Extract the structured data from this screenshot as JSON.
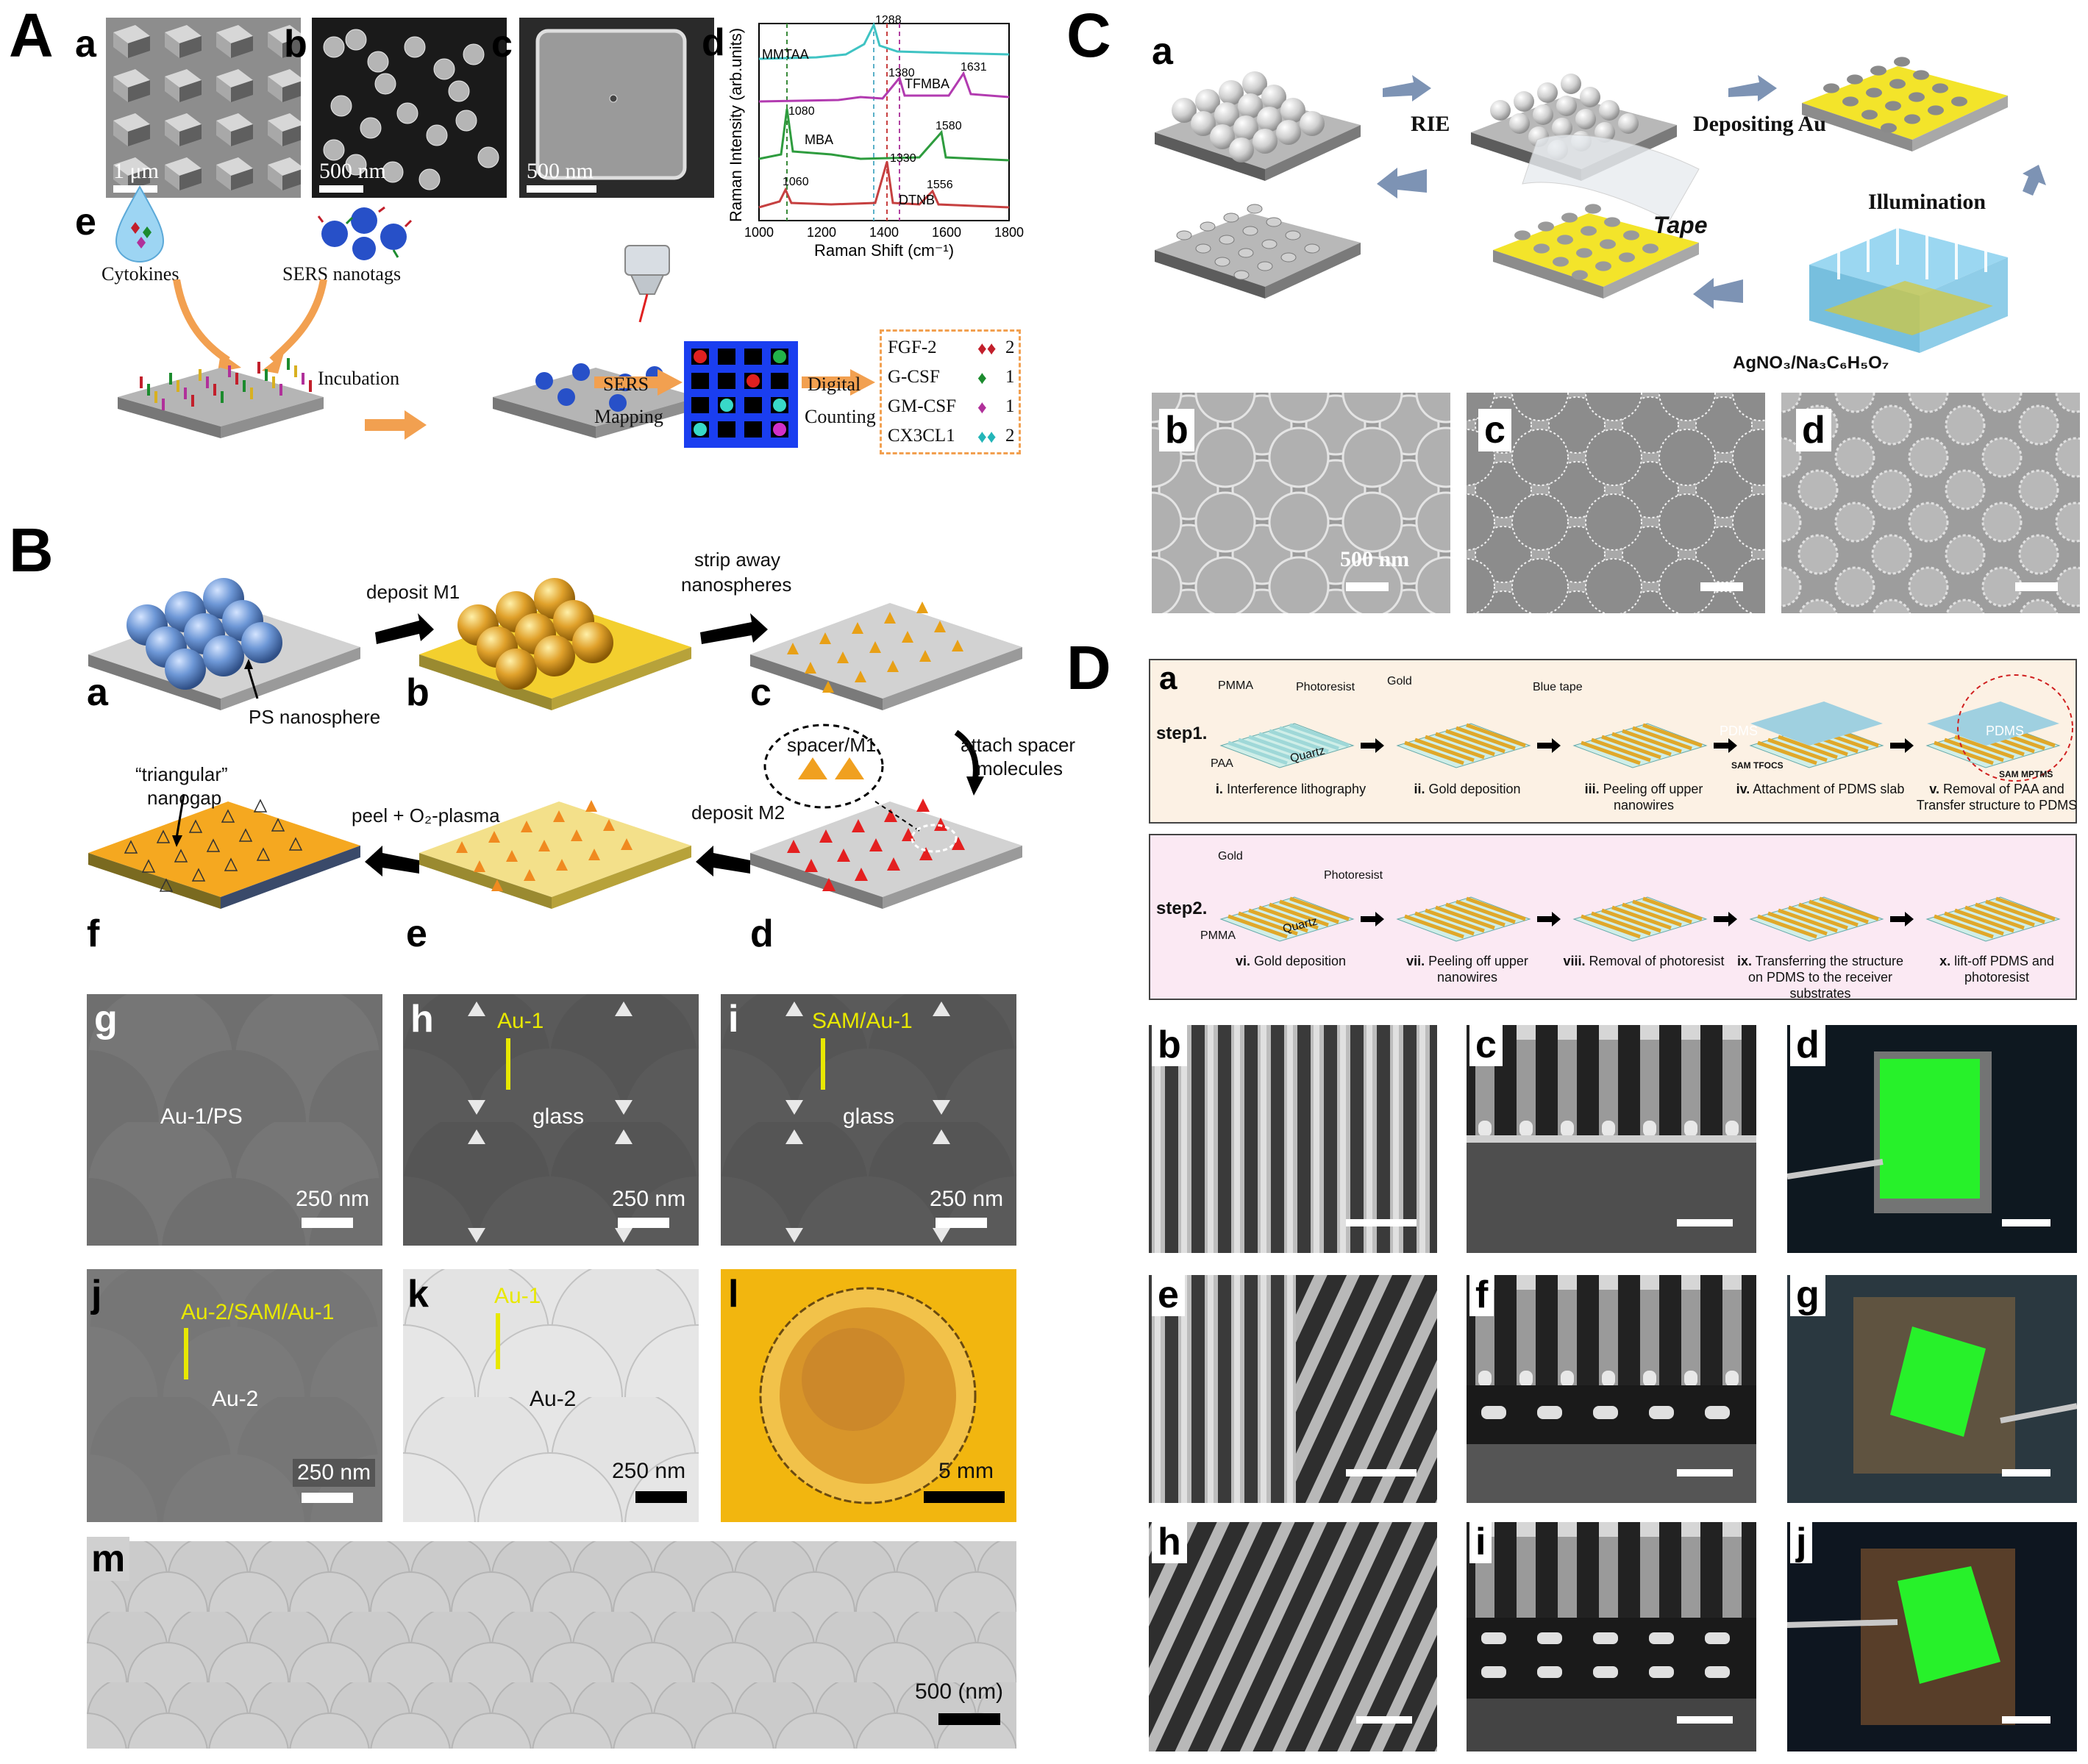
{
  "panels": {
    "A": "A",
    "B": "B",
    "C": "C",
    "D": "D"
  },
  "A": {
    "sub": {
      "a": "a",
      "b": "b",
      "c": "c",
      "d": "d",
      "e": "e"
    },
    "sb_a": "1 μm",
    "sb_b": "500 nm",
    "sb_c": "500 nm",
    "cytokines": "Cytokines",
    "nanotags": "SERS nanotags",
    "incubation": "Incubation",
    "sers_mapping_1": "SERS",
    "sers_mapping_2": "Mapping",
    "digital_1": "Digital",
    "digital_2": "Counting",
    "counts": [
      {
        "name": "FGF-2",
        "count": "2",
        "color": "#c21f2b"
      },
      {
        "name": "G-CSF",
        "count": "1",
        "color": "#1c8b2e"
      },
      {
        "name": "GM-CSF",
        "count": "1",
        "color": "#b0309a"
      },
      {
        "name": "CX3CL1",
        "count": "2",
        "color": "#23b5b8"
      }
    ],
    "spectrum": {
      "ylabel": "Raman Intensity (arb.units)",
      "xlabel": "Raman Shift (cm⁻¹)",
      "xticks": [
        "1000",
        "1200",
        "1400",
        "1600",
        "1800"
      ],
      "labels": [
        "MMTAA",
        "TFMBA",
        "MBA",
        "DTNB"
      ],
      "peaks": [
        "1288",
        "1380",
        "1631",
        "1080",
        "1580",
        "1060",
        "1330",
        "1556"
      ]
    }
  },
  "B": {
    "sub": {
      "a": "a",
      "b": "b",
      "c": "c",
      "d": "d",
      "e": "e",
      "f": "f",
      "g": "g",
      "h": "h",
      "i": "i",
      "j": "j",
      "k": "k",
      "l": "l",
      "m": "m"
    },
    "deposit_m1": "deposit M1",
    "strip1": "strip away",
    "strip2": "nanospheres",
    "ps": "PS nanosphere",
    "attach1": "attach spacer",
    "attach2": "molecules",
    "spacer": "spacer/M1",
    "deposit_m2": "deposit M2",
    "peel": "peel + O₂-plasma",
    "nanogap1": "“triangular”",
    "nanogap2": "nanogap",
    "g_label": "Au-1/PS",
    "h_arrow": "Au-1",
    "h_label": "glass",
    "i_arrow": "SAM/Au-1",
    "i_label": "glass",
    "j_arrow": "Au-2/SAM/Au-1",
    "j_label": "Au-2",
    "k_arrow": "Au-1",
    "k_label": "Au-2",
    "sb250": "250 nm",
    "sb5mm": "5 mm",
    "sb500": "500 (nm)"
  },
  "C": {
    "sub": {
      "a": "a",
      "b": "b",
      "c": "c",
      "d": "d"
    },
    "rie": "RIE",
    "depositing": "Depositing Au",
    "illumination": "Illumination",
    "tape": "Tape",
    "agno3": "AgNO₃/Na₃C₆H₅O₇",
    "sb500": "500 nm"
  },
  "D": {
    "sub": {
      "a": "a",
      "b": "b",
      "c": "c",
      "d": "d",
      "e": "e",
      "f": "f",
      "g": "g",
      "h": "h",
      "i": "i",
      "j": "j"
    },
    "step1": "step1.",
    "step2": "step2.",
    "pmma": "PMMA",
    "photoresist": "Photoresist",
    "paa": "PAA",
    "quartz": "Quartz",
    "gold": "Gold",
    "blue_tape": "Blue tape",
    "pdms": "PDMS",
    "sam_tfocs": "SAM TFOCS",
    "sam_mptms": "SAM MPTMS",
    "steps1": [
      {
        "num": "i.",
        "text": "Interference lithography"
      },
      {
        "num": "ii.",
        "text": "Gold deposition"
      },
      {
        "num": "iii.",
        "text": "Peeling off upper nanowires"
      },
      {
        "num": "iv.",
        "text": "Attachment of PDMS slab"
      },
      {
        "num": "v.",
        "text": "Removal of PAA and Transfer structure to PDMS"
      }
    ],
    "steps2": [
      {
        "num": "vi.",
        "text": "Gold deposition"
      },
      {
        "num": "vii.",
        "text": "Peeling off upper nanowires"
      },
      {
        "num": "viii.",
        "text": "Removal of photoresist"
      },
      {
        "num": "ix.",
        "text": "Transferring the structure on PDMS to the receiver substrates"
      },
      {
        "num": "x.",
        "text": "lift-off PDMS and photoresist"
      }
    ]
  }
}
